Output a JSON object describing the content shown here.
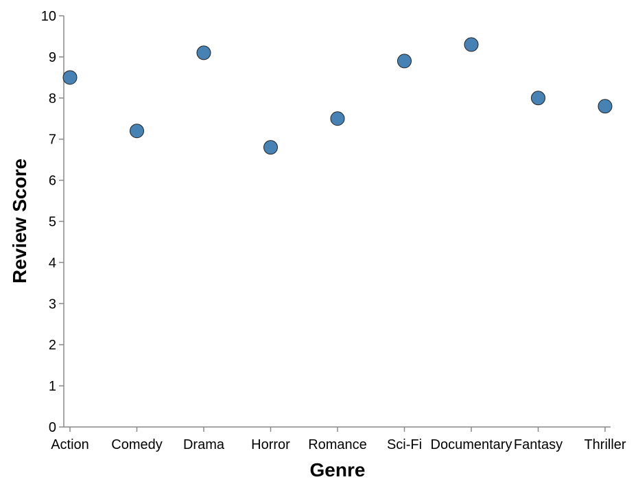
{
  "chart_data": {
    "type": "scatter",
    "title": "",
    "xlabel": "Genre",
    "ylabel": "Review Score",
    "categories": [
      "Action",
      "Comedy",
      "Drama",
      "Horror",
      "Romance",
      "Sci-Fi",
      "Documentary",
      "Fantasy",
      "Thriller"
    ],
    "values": [
      8.5,
      7.2,
      9.1,
      6.8,
      7.5,
      8.9,
      9.3,
      8.0,
      7.8
    ],
    "ylim": [
      0,
      10
    ],
    "yticks": [
      0,
      1,
      2,
      3,
      4,
      5,
      6,
      7,
      8,
      9,
      10
    ],
    "grid": false,
    "point_color": "#4682b4"
  }
}
